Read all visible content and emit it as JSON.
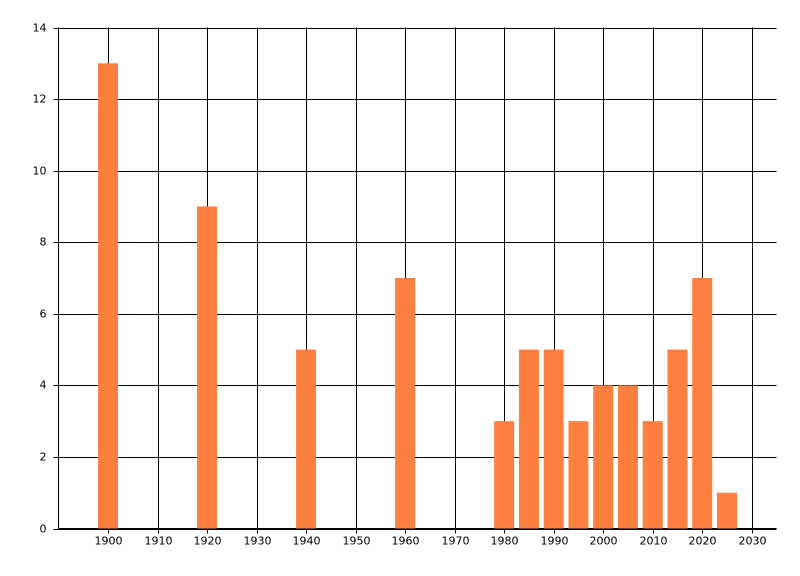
{
  "chart_data": {
    "type": "bar",
    "x": [
      1900,
      1920,
      1940,
      1960,
      1980,
      1985,
      1990,
      1995,
      2000,
      2005,
      2010,
      2015,
      2020,
      2025
    ],
    "values": [
      13,
      9,
      5,
      7,
      3,
      5,
      5,
      3,
      4,
      4,
      3,
      5,
      7,
      1
    ],
    "color": "#ff7f40",
    "xlim": [
      1890,
      2035
    ],
    "xticks": [
      1900,
      1910,
      1920,
      1930,
      1940,
      1950,
      1960,
      1970,
      1980,
      1990,
      2000,
      2010,
      2020,
      2030
    ],
    "ylim": [
      0,
      14
    ],
    "yticks": [
      0,
      2,
      4,
      6,
      8,
      10,
      12,
      14
    ],
    "grid": true
  }
}
